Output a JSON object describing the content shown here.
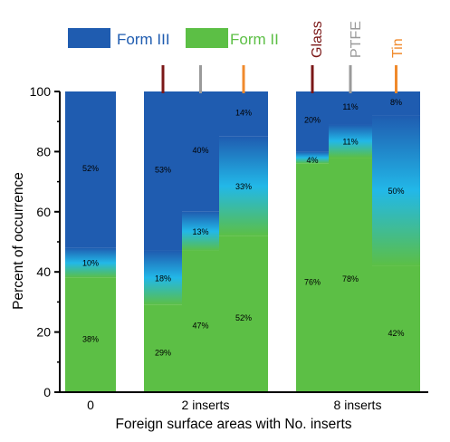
{
  "chart_data": {
    "type": "bar",
    "stacked": true,
    "xlabel": "Foreign surface areas with No. inserts",
    "ylabel": "Percent of occurrence",
    "ylim": [
      0,
      100
    ],
    "yticks": [
      0,
      20,
      40,
      60,
      80,
      100
    ],
    "legend": {
      "placement": "top-left",
      "items": [
        {
          "label": "Form III",
          "color": "#1f5cb0"
        },
        {
          "label": "Form II",
          "color": "#5cbf45"
        }
      ]
    },
    "group_labels": [
      "0",
      "2 inserts",
      "8 inserts"
    ],
    "material_labels": [
      {
        "label": "Glass",
        "color": "#7b1717"
      },
      {
        "label": "PTFE",
        "color": "#9a9a9a"
      },
      {
        "label": "Tin",
        "color": "#f08a2c"
      }
    ],
    "bars": [
      {
        "group": "0",
        "material": "",
        "form_ii": 38,
        "mixed": 10,
        "form_iii": 52
      },
      {
        "group": "2 inserts",
        "material": "Glass",
        "form_ii": 29,
        "mixed": 18,
        "form_iii": 53
      },
      {
        "group": "2 inserts",
        "material": "PTFE",
        "form_ii": 47,
        "mixed": 13,
        "form_iii": 40
      },
      {
        "group": "2 inserts",
        "material": "Tin",
        "form_ii": 52,
        "mixed": 33,
        "form_iii": 14
      },
      {
        "group": "8 inserts",
        "material": "Glass",
        "form_ii": 76,
        "mixed": 4,
        "form_iii": 20
      },
      {
        "group": "8 inserts",
        "material": "PTFE",
        "form_ii": 78,
        "mixed": 11,
        "form_iii": 11
      },
      {
        "group": "8 inserts",
        "material": "Tin",
        "form_ii": 42,
        "mixed": 50,
        "form_iii": 8
      }
    ],
    "colors": {
      "form_iii": "#1f5cb0",
      "form_ii": "#5cbf45",
      "mixed_mid": "#22b8e8",
      "axis": "#000000"
    }
  }
}
